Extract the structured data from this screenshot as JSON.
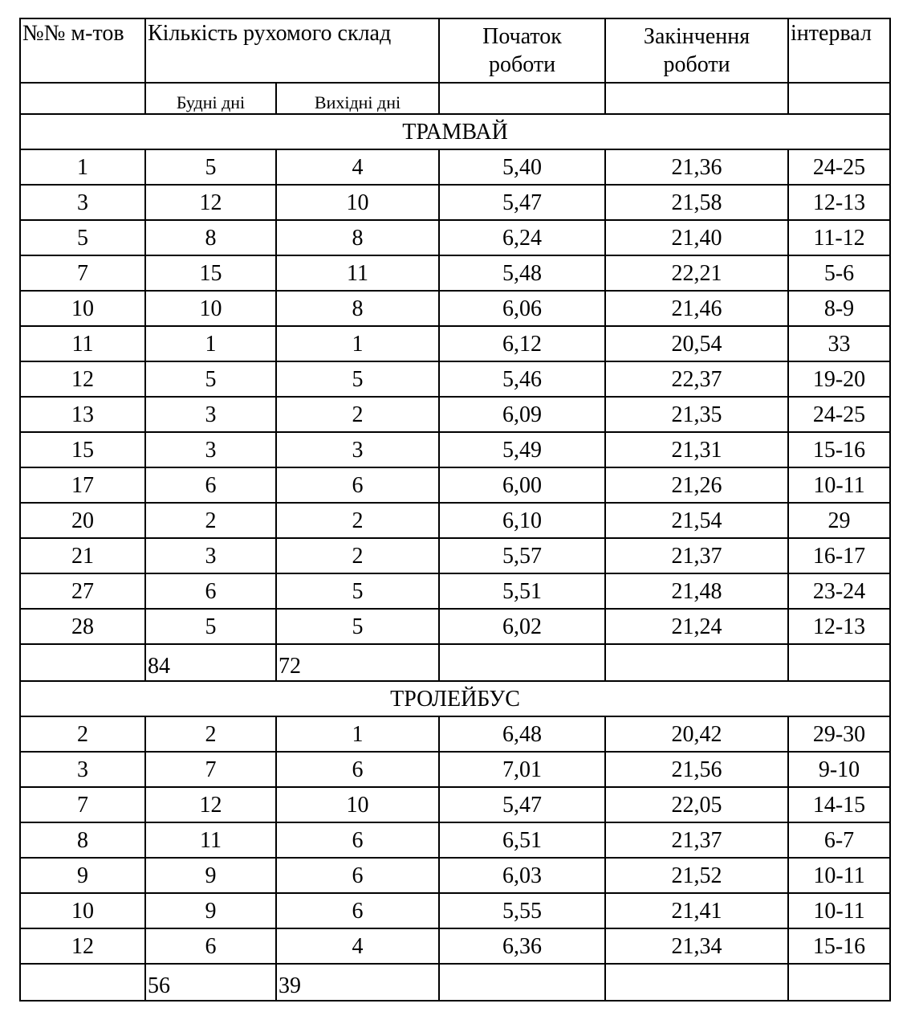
{
  "header": {
    "route_no": "№№ м-тов",
    "fleet_count": "Кількість рухомого склад",
    "start": "Початок роботи",
    "end": "Закінчення роботи",
    "interval": "інтервал",
    "weekdays": "Будні дні",
    "weekends": "Вихідні дні"
  },
  "sections": [
    {
      "title": "ТРАМВАЙ",
      "rows": [
        [
          "1",
          "5",
          "4",
          "5,40",
          "21,36",
          "24-25"
        ],
        [
          "3",
          "12",
          "10",
          "5,47",
          "21,58",
          "12-13"
        ],
        [
          "5",
          "8",
          "8",
          "6,24",
          "21,40",
          "11-12"
        ],
        [
          "7",
          "15",
          "11",
          "5,48",
          "22,21",
          "5-6"
        ],
        [
          "10",
          "10",
          "8",
          "6,06",
          "21,46",
          "8-9"
        ],
        [
          "11",
          "1",
          "1",
          "6,12",
          "20,54",
          "33"
        ],
        [
          "12",
          "5",
          "5",
          "5,46",
          "22,37",
          "19-20"
        ],
        [
          "13",
          "3",
          "2",
          "6,09",
          "21,35",
          "24-25"
        ],
        [
          "15",
          "3",
          "3",
          "5,49",
          "21,31",
          "15-16"
        ],
        [
          "17",
          "6",
          "6",
          "6,00",
          "21,26",
          "10-11"
        ],
        [
          "20",
          "2",
          "2",
          "6,10",
          "21,54",
          "29"
        ],
        [
          "21",
          "3",
          "2",
          "5,57",
          "21,37",
          "16-17"
        ],
        [
          "27",
          "6",
          "5",
          "5,51",
          "21,48",
          "23-24"
        ],
        [
          "28",
          "5",
          "5",
          "6,02",
          "21,24",
          "12-13"
        ]
      ],
      "total_weekdays": "84",
      "total_weekends": "72"
    },
    {
      "title": "ТРОЛЕЙБУС",
      "rows": [
        [
          "2",
          "2",
          "1",
          "6,48",
          "20,42",
          "29-30"
        ],
        [
          "3",
          "7",
          "6",
          "7,01",
          "21,56",
          "9-10"
        ],
        [
          "7",
          "12",
          "10",
          "5,47",
          "22,05",
          "14-15"
        ],
        [
          "8",
          "11",
          "6",
          "6,51",
          "21,37",
          "6-7"
        ],
        [
          "9",
          "9",
          "6",
          "6,03",
          "21,52",
          "10-11"
        ],
        [
          "10",
          "9",
          "6",
          "5,55",
          "21,41",
          "10-11"
        ],
        [
          "12",
          "6",
          "4",
          "6,36",
          "21,34",
          "15-16"
        ]
      ],
      "total_weekdays": "56",
      "total_weekends": "39"
    }
  ]
}
